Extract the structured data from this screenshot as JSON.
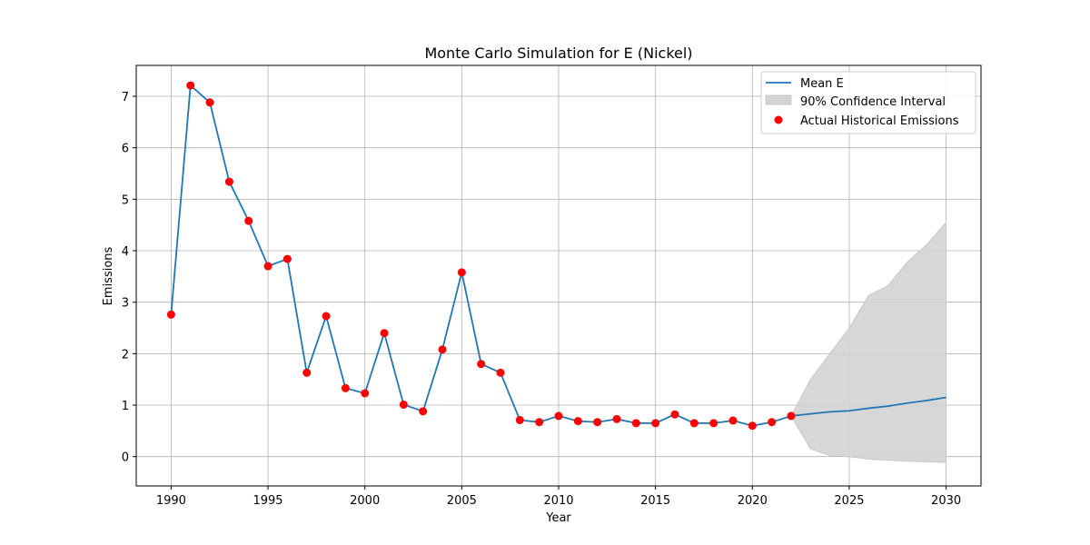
{
  "chart_data": {
    "type": "line",
    "title": "Monte Carlo Simulation for E (Nickel)",
    "xlabel": "Year",
    "ylabel": "Emissions",
    "xlim": [
      1988.2,
      2031.8
    ],
    "ylim": [
      -0.57,
      7.6
    ],
    "xticks": [
      1990,
      1995,
      2000,
      2005,
      2010,
      2015,
      2020,
      2025,
      2030
    ],
    "yticks": [
      0,
      1,
      2,
      3,
      4,
      5,
      6,
      7
    ],
    "grid": true,
    "legend_position": "top-right",
    "series": [
      {
        "name": "Mean E",
        "kind": "line",
        "color": "#1f77b4",
        "x": [
          1990,
          1991,
          1992,
          1993,
          1994,
          1995,
          1996,
          1997,
          1998,
          1999,
          2000,
          2001,
          2002,
          2003,
          2004,
          2005,
          2006,
          2007,
          2008,
          2009,
          2010,
          2011,
          2012,
          2013,
          2014,
          2015,
          2016,
          2017,
          2018,
          2019,
          2020,
          2021,
          2022,
          2023,
          2024,
          2025,
          2026,
          2027,
          2028,
          2029,
          2030
        ],
        "y": [
          2.76,
          7.21,
          6.88,
          5.34,
          4.58,
          3.7,
          3.84,
          1.63,
          2.73,
          1.33,
          1.23,
          2.4,
          1.01,
          0.88,
          2.08,
          3.58,
          1.8,
          1.63,
          0.71,
          0.67,
          0.79,
          0.69,
          0.67,
          0.73,
          0.65,
          0.65,
          0.82,
          0.65,
          0.65,
          0.7,
          0.6,
          0.67,
          0.79,
          0.83,
          0.87,
          0.89,
          0.94,
          0.98,
          1.04,
          1.09,
          1.15
        ]
      },
      {
        "name": "90% Confidence Interval",
        "kind": "band",
        "color": "#d3d3d3",
        "x": [
          2022,
          2023,
          2024,
          2025,
          2026,
          2027,
          2028,
          2029,
          2030
        ],
        "lower": [
          0.79,
          0.15,
          0.02,
          0.0,
          -0.05,
          -0.07,
          -0.09,
          -0.1,
          -0.11
        ],
        "upper": [
          0.79,
          1.5,
          2.0,
          2.5,
          3.13,
          3.32,
          3.78,
          4.12,
          4.55
        ]
      },
      {
        "name": "Actual Historical Emissions",
        "kind": "scatter",
        "color": "#ff0000",
        "x": [
          1990,
          1991,
          1992,
          1993,
          1994,
          1995,
          1996,
          1997,
          1998,
          1999,
          2000,
          2001,
          2002,
          2003,
          2004,
          2005,
          2006,
          2007,
          2008,
          2009,
          2010,
          2011,
          2012,
          2013,
          2014,
          2015,
          2016,
          2017,
          2018,
          2019,
          2020,
          2021,
          2022
        ],
        "y": [
          2.76,
          7.21,
          6.88,
          5.34,
          4.58,
          3.7,
          3.84,
          1.63,
          2.73,
          1.33,
          1.23,
          2.4,
          1.01,
          0.88,
          2.08,
          3.58,
          1.8,
          1.63,
          0.71,
          0.67,
          0.79,
          0.69,
          0.67,
          0.73,
          0.65,
          0.65,
          0.82,
          0.65,
          0.65,
          0.7,
          0.6,
          0.67,
          0.79
        ]
      }
    ]
  }
}
